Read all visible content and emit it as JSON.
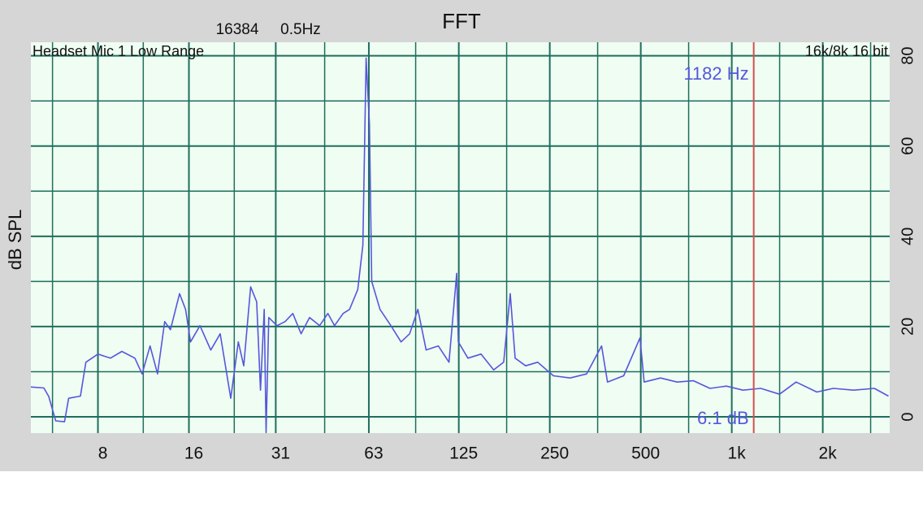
{
  "chart_data": {
    "type": "line",
    "title": "FFT",
    "fft_size": "16384",
    "resolution": "0.5Hz",
    "input_label": "Headset Mic 1 Low Range",
    "format_label": "16k/8k 16 bit",
    "y_label": "dB SPL",
    "x_scale": "log",
    "grid": true,
    "xlim": [
      4.8,
      3330
    ],
    "ylim": [
      -3.6,
      83
    ],
    "xticks": [
      8,
      16,
      31,
      63,
      125,
      250,
      500,
      {
        "value": 1000,
        "label": "1k"
      },
      {
        "value": 2000,
        "label": "2k"
      }
    ],
    "x_minor_ticks": [
      5.66,
      11.3,
      22.6,
      45,
      90,
      180,
      360,
      720,
      1440,
      2880
    ],
    "yticks": [
      0,
      20,
      40,
      60,
      80
    ],
    "y_minor_ticks": [
      10,
      30,
      50,
      70
    ],
    "x": [
      4.8,
      5.3,
      5.5,
      5.8,
      6.2,
      6.4,
      7.0,
      7.3,
      8,
      8.8,
      9.6,
      10.6,
      11.2,
      11.9,
      12.6,
      13.3,
      13.9,
      14.9,
      15.6,
      16.2,
      17.4,
      18.9,
      20.3,
      22.0,
      23.3,
      24.3,
      25.6,
      26.8,
      27.6,
      28.4,
      28.8,
      29.4,
      31.3,
      33.3,
      35.3,
      37.6,
      40.1,
      43.3,
      46.1,
      48.5,
      51.8,
      54.4,
      57.9,
      60.2,
      61.7,
      63.3,
      64.4,
      68.6,
      74.5,
      80.5,
      86,
      91.5,
      97.5,
      107,
      116,
      123,
      124.6,
      134,
      148,
      163,
      176,
      185,
      192,
      208,
      228,
      257,
      292,
      331,
      371,
      388,
      439,
      497,
      513,
      581,
      659,
      747,
      847,
      960,
      1089,
      1247,
      1439,
      1632,
      1911,
      2167,
      2532,
      2963,
      3300
    ],
    "series": [
      {
        "color": "#5656dc",
        "values": [
          6.6,
          6.4,
          4.5,
          -0.9,
          -1.1,
          4.1,
          4.6,
          12.1,
          13.9,
          13.0,
          14.5,
          13.0,
          9.5,
          15.7,
          9.5,
          21.1,
          19.3,
          27.3,
          23.8,
          16.6,
          20.2,
          14.8,
          18.4,
          4.1,
          16.6,
          11.3,
          28.8,
          25.5,
          5.9,
          23.8,
          -3.5,
          22.0,
          20.2,
          21.1,
          22.9,
          18.4,
          22.0,
          20.2,
          22.9,
          20.2,
          22.9,
          23.8,
          28.2,
          38.0,
          79.5,
          64.8,
          30.0,
          23.8,
          20.2,
          16.6,
          18.4,
          23.8,
          14.8,
          15.7,
          12.1,
          31.8,
          16.6,
          13.0,
          13.9,
          10.4,
          12.1,
          27.3,
          13.0,
          11.3,
          12.1,
          9.1,
          8.6,
          9.5,
          15.7,
          7.7,
          9.1,
          17.5,
          7.7,
          8.6,
          7.7,
          8.0,
          6.3,
          6.8,
          5.9,
          6.3,
          5.0,
          7.7,
          5.5,
          6.3,
          5.9,
          6.3,
          4.6
        ]
      }
    ],
    "cursor": {
      "x": 1182,
      "color": "#d05050",
      "label": "1182 Hz",
      "readout": "6.1 dB"
    }
  }
}
